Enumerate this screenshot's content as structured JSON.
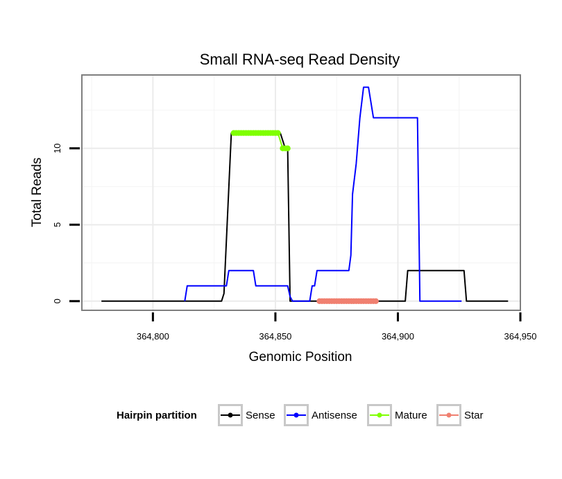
{
  "chart_data": {
    "type": "line",
    "title": "Small RNA-seq Read Density",
    "xlabel": "Genomic Position",
    "ylabel": "Total Reads",
    "xlim": [
      364771,
      364950
    ],
    "ylim": [
      -0.6,
      14.8
    ],
    "x_ticks": [
      364800,
      364850,
      364900,
      364950
    ],
    "x_tick_labels": [
      "364,800",
      "364,850",
      "364,900",
      "364,950"
    ],
    "y_ticks": [
      0,
      5,
      10
    ],
    "y_tick_labels": [
      "0",
      "5",
      "10"
    ],
    "grid": true,
    "legend": {
      "title": "Hairpin partition",
      "position": "bottom"
    },
    "series": [
      {
        "name": "Sense",
        "color": "#000000",
        "marker": false,
        "x": [
          364779,
          364828,
          364829,
          364832,
          364833,
          364852,
          364854,
          364855,
          364856,
          364858,
          364900,
          364903,
          364904,
          364927,
          364928,
          364945
        ],
        "y": [
          0,
          0,
          0.5,
          11,
          11,
          11,
          10,
          10,
          0,
          0,
          0,
          0,
          2,
          2,
          0,
          0
        ]
      },
      {
        "name": "Antisense",
        "color": "#0000ff",
        "marker": false,
        "x": [
          364813,
          364814,
          364830,
          364831,
          364841,
          364842,
          364855,
          364856,
          364857,
          364864,
          364865,
          364866,
          364867,
          364880,
          364880.8,
          364881.5,
          364883,
          364884.5,
          364886,
          364888,
          364890,
          364891,
          364902,
          364908,
          364909,
          364926
        ],
        "y": [
          0,
          1,
          1,
          2,
          2,
          1,
          1,
          0.3,
          0,
          0,
          1,
          1,
          2,
          2,
          3,
          7,
          9,
          12,
          14,
          14,
          12,
          12,
          12,
          12,
          0,
          0
        ]
      },
      {
        "name": "Mature",
        "color": "#7fff00",
        "marker": true,
        "x": [
          364833,
          364834,
          364835,
          364836,
          364837,
          364838,
          364839,
          364840,
          364841,
          364842,
          364843,
          364844,
          364845,
          364846,
          364847,
          364848,
          364849,
          364850,
          364851,
          364853,
          364854,
          364855
        ],
        "y": [
          11,
          11,
          11,
          11,
          11,
          11,
          11,
          11,
          11,
          11,
          11,
          11,
          11,
          11,
          11,
          11,
          11,
          11,
          11,
          10,
          10,
          10
        ]
      },
      {
        "name": "Star",
        "color": "#f08070",
        "marker": true,
        "x": [
          364868,
          364869,
          364870,
          364871,
          364872,
          364873,
          364874,
          364875,
          364876,
          364877,
          364878,
          364879,
          364880,
          364881,
          364882,
          364883,
          364884,
          364885,
          364886,
          364887,
          364888,
          364889,
          364890,
          364891
        ],
        "y": [
          0,
          0,
          0,
          0,
          0,
          0,
          0,
          0,
          0,
          0,
          0,
          0,
          0,
          0,
          0,
          0,
          0,
          0,
          0,
          0,
          0,
          0,
          0,
          0
        ]
      }
    ]
  }
}
